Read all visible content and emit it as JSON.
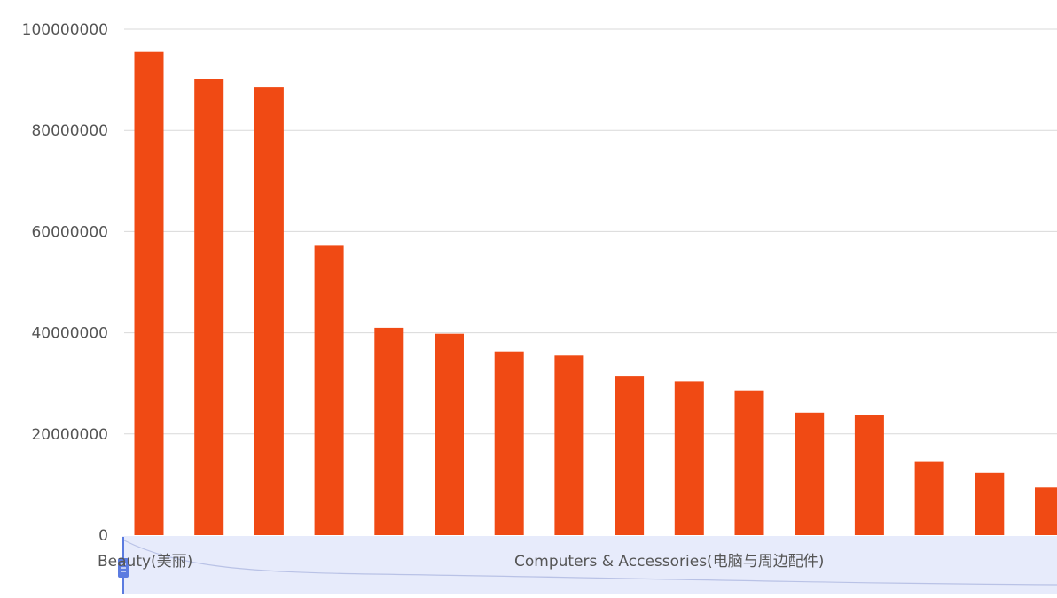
{
  "chart_data": {
    "type": "bar",
    "title": "",
    "xlabel": "",
    "ylabel": "",
    "ylim": [
      0,
      100000000
    ],
    "yticks": [
      0,
      20000000,
      40000000,
      60000000,
      80000000,
      100000000
    ],
    "ytick_labels": [
      "0",
      "20000000",
      "40000000",
      "60000000",
      "80000000",
      "100000000"
    ],
    "grid": "horizontal",
    "bar_color": "#f04a14",
    "grid_color": "#d9d9d9",
    "datazoom_fill": "#e7ebfb",
    "datazoom_handle_color": "#5b7be0",
    "visible_category_labels": [
      "Beauty(美丽)",
      "Computers & Accessories(电脑与周边配件)"
    ],
    "values": [
      95500000,
      90200000,
      88600000,
      57200000,
      41000000,
      39800000,
      36300000,
      35500000,
      31500000,
      30400000,
      28600000,
      24200000,
      23800000,
      14600000,
      12300000,
      9400000
    ]
  }
}
